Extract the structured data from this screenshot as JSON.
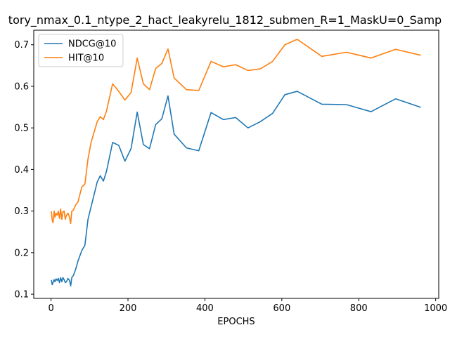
{
  "chart_data": {
    "type": "line",
    "title": "tory_nmax_0.1_ntype_2_hact_leakyrelu_1812_submen_R=1_MaskU=0_Samp",
    "xlabel": "EPOCHS",
    "ylabel": "",
    "xlim": [
      -45,
      1008
    ],
    "ylim": [
      0.09,
      0.735
    ],
    "xticks": [
      0,
      200,
      400,
      600,
      800,
      1000
    ],
    "yticks": [
      0.1,
      0.2,
      0.3,
      0.4,
      0.5,
      0.6,
      0.7
    ],
    "xtick_labels": [
      "0",
      "200",
      "400",
      "600",
      "800",
      "1000"
    ],
    "ytick_labels": [
      "0.1",
      "0.2",
      "0.3",
      "0.4",
      "0.5",
      "0.6",
      "0.7"
    ],
    "grid": false,
    "legend_position": "upper-left",
    "series": [
      {
        "name": "NDCG@10",
        "color": "#1f77b4",
        "x": [
          1,
          3,
          5,
          8,
          10,
          13,
          16,
          19,
          22,
          25,
          28,
          31,
          34,
          37,
          40,
          44,
          48,
          51,
          54,
          58,
          64,
          70,
          80,
          88,
          96,
          104,
          112,
          120,
          128,
          136,
          144,
          160,
          176,
          192,
          208,
          224,
          240,
          256,
          272,
          288,
          304,
          320,
          352,
          384,
          416,
          448,
          480,
          512,
          544,
          576,
          608,
          640,
          704,
          768,
          832,
          896,
          960
        ],
        "y": [
          0.133,
          0.123,
          0.128,
          0.135,
          0.13,
          0.137,
          0.133,
          0.138,
          0.128,
          0.14,
          0.13,
          0.14,
          0.135,
          0.128,
          0.13,
          0.138,
          0.133,
          0.12,
          0.14,
          0.145,
          0.16,
          0.18,
          0.205,
          0.218,
          0.28,
          0.31,
          0.34,
          0.37,
          0.385,
          0.372,
          0.395,
          0.465,
          0.458,
          0.42,
          0.45,
          0.538,
          0.46,
          0.45,
          0.508,
          0.522,
          0.577,
          0.485,
          0.452,
          0.445,
          0.537,
          0.52,
          0.525,
          0.5,
          0.515,
          0.535,
          0.58,
          0.588,
          0.557,
          0.556,
          0.539,
          0.57,
          0.55
        ]
      },
      {
        "name": "HIT@10",
        "color": "#ff7f0e",
        "x": [
          1,
          3,
          5,
          8,
          10,
          13,
          16,
          19,
          22,
          25,
          28,
          31,
          34,
          37,
          40,
          44,
          48,
          51,
          54,
          58,
          64,
          70,
          80,
          88,
          96,
          104,
          112,
          120,
          128,
          136,
          144,
          160,
          176,
          192,
          208,
          224,
          240,
          256,
          272,
          288,
          304,
          320,
          352,
          384,
          416,
          448,
          480,
          512,
          544,
          576,
          608,
          640,
          704,
          768,
          832,
          896,
          960
        ],
        "y": [
          0.298,
          0.278,
          0.272,
          0.3,
          0.285,
          0.295,
          0.29,
          0.3,
          0.282,
          0.305,
          0.28,
          0.298,
          0.3,
          0.28,
          0.29,
          0.295,
          0.285,
          0.27,
          0.3,
          0.302,
          0.315,
          0.322,
          0.358,
          0.365,
          0.425,
          0.465,
          0.49,
          0.515,
          0.527,
          0.52,
          0.54,
          0.606,
          0.588,
          0.567,
          0.585,
          0.668,
          0.606,
          0.592,
          0.643,
          0.655,
          0.69,
          0.62,
          0.592,
          0.59,
          0.66,
          0.647,
          0.652,
          0.638,
          0.642,
          0.66,
          0.7,
          0.713,
          0.672,
          0.682,
          0.668,
          0.689,
          0.675
        ]
      }
    ]
  }
}
